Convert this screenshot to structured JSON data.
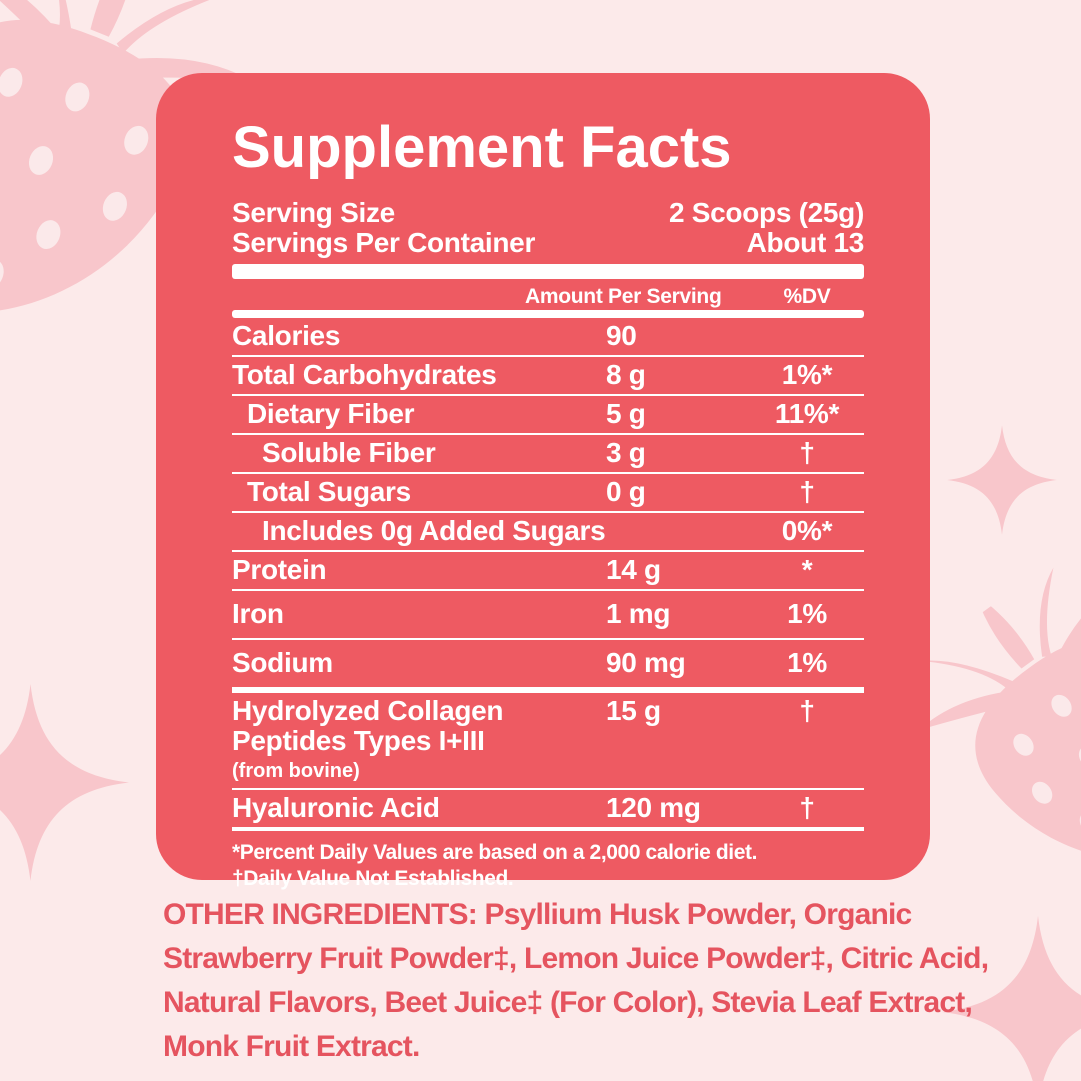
{
  "colors": {
    "bg": "#FCEAEA",
    "panel": "#EE5A62",
    "panel-text": "#FFFFFF",
    "ink": "#E5545F",
    "deco": "#F8C6CB",
    "seed": "#FBE9EA"
  },
  "panel": {
    "title": "Supplement Facts",
    "serving_rows": [
      {
        "label": "Serving Size",
        "value": "2 Scoops (25g)"
      },
      {
        "label": "Servings Per Container",
        "value": "About 13"
      }
    ],
    "table": {
      "amount_header": "Amount Per Serving",
      "dv_header": "%DV",
      "rows": [
        {
          "name": "Calories",
          "amount": "90",
          "dv": "",
          "indent": 0
        },
        {
          "name": "Total Carbohydrates",
          "amount": "8 g",
          "dv": "1%*",
          "indent": 0
        },
        {
          "name": "Dietary Fiber",
          "amount": "5 g",
          "dv": "11%*",
          "indent": 1
        },
        {
          "name": "Soluble Fiber",
          "amount": "3 g",
          "dv": "†",
          "indent": 2
        },
        {
          "name": "Total Sugars",
          "amount": "0 g",
          "dv": "†",
          "indent": 1
        },
        {
          "name": "Includes 0g Added Sugars",
          "amount": "",
          "dv": "0%*",
          "indent": 2
        },
        {
          "name": "Protein",
          "amount": "14 g",
          "dv": "*",
          "indent": 0
        },
        {
          "name": "Iron",
          "amount": "1 mg",
          "dv": "1%",
          "indent": 0,
          "tall": true
        },
        {
          "name": "Sodium",
          "amount": "90 mg",
          "dv": "1%",
          "indent": 0,
          "tall": true,
          "thick_bottom": true
        },
        {
          "name": "Hydrolyzed Collagen Peptides Types I+III",
          "name_lines": [
            "Hydrolyzed Collagen",
            "Peptides Types I+III"
          ],
          "subnote": "(from bovine)",
          "amount": "15 g",
          "dv": "†",
          "indent": 0,
          "two_line": true
        },
        {
          "name": "Hyaluronic Acid",
          "amount": "120 mg",
          "dv": "†",
          "indent": 0,
          "final": true
        }
      ]
    },
    "footnotes": [
      "*Percent Daily Values are based on a 2,000 calorie diet.",
      "†Daily Value Not Established."
    ]
  },
  "other_ingredients": {
    "full_text": "OTHER INGREDIENTS: Psyllium Husk Powder, Organic Strawberry Fruit Powder‡, Lemon Juice Powder‡, Citric Acid, Natural Flavors, Beet Juice‡ (For Color), Stevia Leaf Extract, Monk Fruit Extract.",
    "lines": [
      "OTHER INGREDIENTS: Psyllium Husk Powder, Organic",
      "Strawberry Fruit Powder‡, Lemon Juice Powder‡, Citric Acid,",
      "Natural Flavors, Beet Juice‡ (For Color), Stevia Leaf Extract,",
      "Monk Fruit Extract."
    ]
  },
  "decorations": {
    "icons": [
      "strawberry-icon",
      "sparkle-icon"
    ]
  }
}
